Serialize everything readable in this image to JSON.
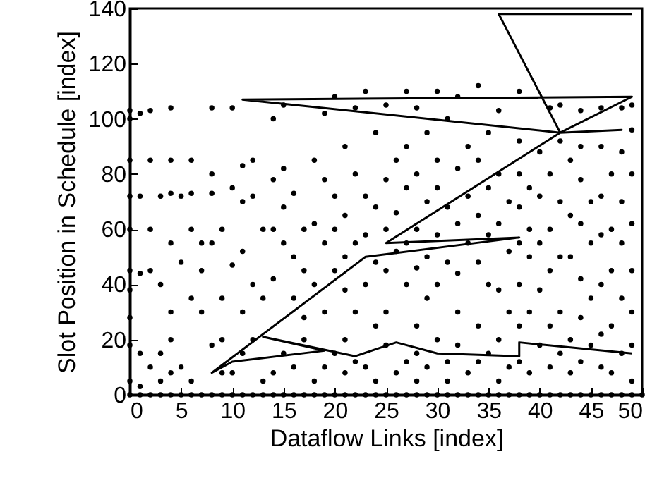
{
  "chart_data": {
    "type": "scatter",
    "xlabel": "Dataflow Links [index]",
    "ylabel": "Slot Position in Schedule [index]",
    "xlim": [
      0,
      50
    ],
    "ylim": [
      0,
      140
    ],
    "xticks": [
      0,
      5,
      10,
      15,
      20,
      25,
      30,
      35,
      40,
      45,
      50
    ],
    "yticks": [
      0,
      20,
      40,
      60,
      80,
      100,
      120,
      140
    ],
    "grid": false,
    "series": [
      {
        "color": "#000000",
        "marker": "circle",
        "x": [
          0,
          1,
          2,
          3,
          4,
          5,
          6,
          7,
          8,
          9,
          10,
          11,
          12,
          13,
          14,
          15,
          16,
          17,
          18,
          19,
          20,
          21,
          22,
          23,
          24,
          25,
          26,
          27,
          28,
          29,
          30,
          31,
          32,
          33,
          34,
          35,
          36,
          37,
          38,
          39,
          40,
          41,
          42,
          43,
          44,
          45,
          46,
          47,
          48,
          49,
          50,
          0,
          0,
          0,
          0,
          0,
          0,
          0,
          0,
          0,
          0,
          1,
          1,
          1,
          1,
          1,
          2,
          2,
          2,
          2,
          2,
          3,
          3,
          3,
          3,
          4,
          4,
          4,
          4,
          4,
          4,
          4,
          5,
          5,
          5,
          6,
          6,
          6,
          6,
          6,
          7,
          7,
          7,
          8,
          8,
          8,
          8,
          8,
          9,
          9,
          9,
          9,
          10,
          10,
          10,
          10,
          11,
          11,
          11,
          11,
          11,
          12,
          12,
          12,
          12,
          13,
          13,
          13,
          14,
          14,
          14,
          14,
          14,
          15,
          15,
          15,
          15,
          15,
          16,
          16,
          16,
          16,
          17,
          17,
          17,
          17,
          18,
          18,
          18,
          18,
          19,
          19,
          19,
          19,
          19,
          20,
          20,
          20,
          20,
          20,
          21,
          21,
          21,
          21,
          21,
          21,
          22,
          22,
          22,
          22,
          22,
          23,
          23,
          23,
          23,
          23,
          24,
          24,
          24,
          24,
          24,
          25,
          25,
          25,
          25,
          25,
          25,
          26,
          26,
          26,
          26,
          27,
          27,
          27,
          27,
          27,
          27,
          28,
          28,
          28,
          28,
          28,
          28,
          28,
          29,
          29,
          29,
          29,
          29,
          30,
          30,
          30,
          30,
          30,
          30,
          31,
          31,
          31,
          31,
          31,
          32,
          32,
          32,
          32,
          32,
          32,
          33,
          33,
          33,
          33,
          34,
          34,
          34,
          34,
          34,
          34,
          35,
          35,
          35,
          35,
          35,
          36,
          36,
          36,
          36,
          36,
          36,
          37,
          37,
          37,
          37,
          38,
          38,
          38,
          38,
          38,
          38,
          38,
          38,
          39,
          39,
          39,
          39,
          39,
          40,
          40,
          40,
          40,
          40,
          41,
          41,
          41,
          41,
          41,
          41,
          42,
          42,
          42,
          42,
          42,
          42,
          43,
          43,
          43,
          43,
          43,
          44,
          44,
          44,
          44,
          44,
          44,
          44,
          45,
          45,
          45,
          45,
          46,
          46,
          46,
          46,
          46,
          46,
          46,
          47,
          47,
          47,
          47,
          47,
          48,
          48,
          48,
          48,
          48,
          48,
          49,
          49,
          49,
          49,
          49,
          49,
          49,
          49
        ],
        "values": [
          0,
          0,
          0,
          0,
          0,
          0,
          0,
          0,
          0,
          0,
          0,
          0,
          0,
          0,
          0,
          0,
          0,
          0,
          0,
          0,
          0,
          0,
          0,
          0,
          0,
          0,
          0,
          0,
          0,
          0,
          0,
          0,
          0,
          0,
          0,
          0,
          0,
          0,
          0,
          0,
          0,
          0,
          0,
          0,
          0,
          0,
          0,
          0,
          0,
          0,
          0,
          103,
          100,
          85,
          72,
          60,
          45,
          38,
          28,
          18,
          5,
          102,
          72,
          44,
          15,
          3,
          103,
          85,
          60,
          45,
          10,
          72,
          40,
          15,
          5,
          104,
          85,
          73,
          55,
          30,
          20,
          8,
          72,
          48,
          10,
          85,
          73,
          60,
          35,
          5,
          55,
          45,
          30,
          104,
          80,
          73,
          55,
          18,
          60,
          35,
          20,
          8,
          104,
          75,
          47,
          8,
          83,
          70,
          52,
          30,
          15,
          72,
          85,
          40,
          20,
          60,
          35,
          5,
          100,
          78,
          60,
          42,
          8,
          105,
          82,
          68,
          55,
          15,
          73,
          50,
          35,
          10,
          60,
          45,
          28,
          20,
          85,
          62,
          40,
          5,
          102,
          78,
          55,
          30,
          10,
          108,
          72,
          60,
          45,
          15,
          90,
          65,
          50,
          38,
          20,
          8,
          104,
          80,
          55,
          30,
          12,
          110,
          72,
          58,
          40,
          10,
          95,
          68,
          48,
          25,
          5,
          105,
          78,
          60,
          45,
          30,
          18,
          85,
          66,
          52,
          8,
          110,
          90,
          75,
          55,
          40,
          12,
          104,
          80,
          60,
          46,
          25,
          15,
          5,
          95,
          70,
          50,
          35,
          10,
          110,
          85,
          75,
          58,
          40,
          20,
          100,
          68,
          48,
          12,
          5,
          108,
          82,
          62,
          44,
          30,
          18,
          90,
          72,
          55,
          8,
          112,
          85,
          65,
          48,
          25,
          12,
          95,
          75,
          58,
          40,
          15,
          103,
          80,
          62,
          38,
          20,
          5,
          70,
          52,
          30,
          10,
          110,
          92,
          80,
          68,
          55,
          40,
          25,
          12,
          75,
          60,
          50,
          30,
          8,
          88,
          72,
          55,
          38,
          18,
          104,
          80,
          60,
          45,
          25,
          10,
          105,
          92,
          70,
          50,
          30,
          15,
          85,
          65,
          50,
          20,
          8,
          103,
          90,
          78,
          62,
          42,
          28,
          12,
          70,
          55,
          35,
          18,
          104,
          90,
          72,
          58,
          40,
          22,
          10,
          80,
          60,
          45,
          25,
          8,
          104,
          88,
          70,
          55,
          35,
          15,
          105,
          96,
          80,
          62,
          45,
          30,
          18,
          5
        ]
      },
      {
        "type": "line",
        "color": "#000000",
        "marker": "none",
        "line_style": "solid",
        "x": [
          49,
          38,
          38,
          30,
          26,
          22,
          13,
          19,
          10,
          8,
          23,
          38,
          25,
          42,
          48,
          42,
          11,
          49,
          42,
          36,
          49
        ],
        "values": [
          15,
          19,
          14,
          15,
          19,
          14,
          21,
          16,
          12,
          8,
          50,
          57,
          55,
          95,
          96,
          95,
          107,
          108,
          95,
          138,
          138
        ]
      }
    ]
  }
}
